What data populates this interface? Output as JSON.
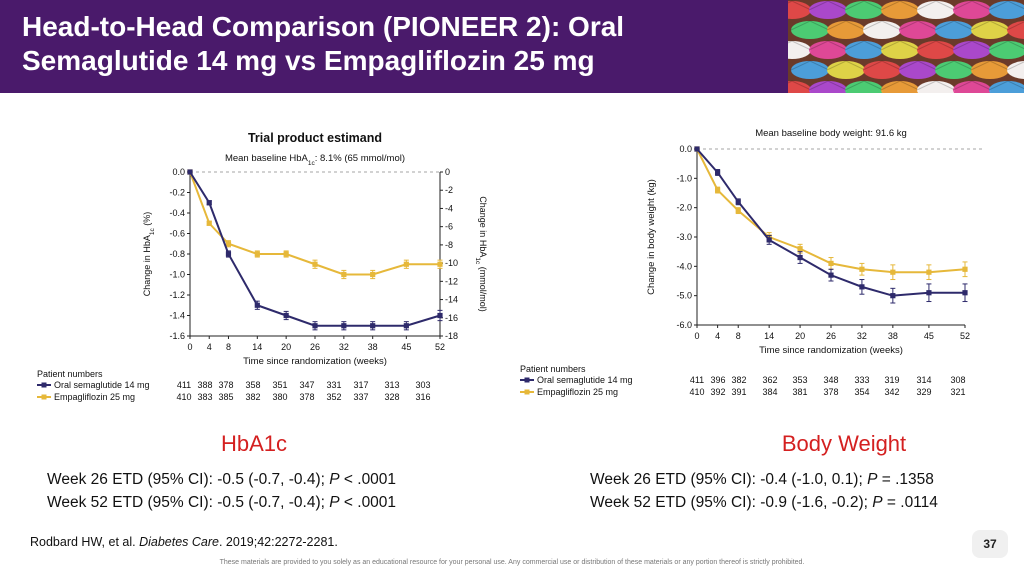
{
  "slide": {
    "title_line1": "Head-to-Head Comparison (PIONEER 2): Oral",
    "title_line2": "Semaglutide 14 mg vs Empagliflozin 25 mg",
    "citation_prefix": "Rodbard HW, et al. ",
    "citation_journal": "Diabetes Care",
    "citation_suffix": ". 2019;42:2272-2281.",
    "page_number": "37",
    "disclaimer": "These materials are provided to you solely as an educational resource for your personal use. Any commercial use or distribution of these materials or any portion thereof is strictly prohibited.",
    "colors": {
      "header": "#4a1a6b",
      "semaglutide": "#2e2a6b",
      "empagliflozin": "#e6b83a",
      "heading_red": "#d42020"
    }
  },
  "hba1c_section": {
    "heading": "HbA1c",
    "etd": [
      {
        "pre": "Week 26 ETD (95% CI): -0.5 (-0.7, -0.4); ",
        "p": "P",
        "post": " < .0001"
      },
      {
        "pre": "Week 52 ETD (95% CI): -0.5 (-0.7, -0.4); ",
        "p": "P",
        "post": " < .0001"
      }
    ]
  },
  "weight_section": {
    "heading": "Body Weight",
    "etd": [
      {
        "pre": "Week 26 ETD (95% CI): -0.4 (-1.0, 0.1); ",
        "p": "P",
        "post": " = .1358"
      },
      {
        "pre": "Week 52 ETD (95% CI): -0.9 (-1.6, -0.2); ",
        "p": "P",
        "post": " = .0114"
      }
    ]
  },
  "chart_data": [
    {
      "type": "line",
      "title": "Trial product estimand",
      "subtitle_pre": "Mean baseline HbA",
      "subtitle_sub": "1c",
      "subtitle_post": ": 8.1% (65 mmol/mol)",
      "xlabel": "Time since randomization (weeks)",
      "ylabel_pre": "Change in HbA",
      "ylabel_sub": "1c",
      "ylabel_post": " (%)",
      "y2label_pre": "Change in HbA",
      "y2label_sub": "1c",
      "y2label_post": " (mmol/mol)",
      "x": [
        0,
        4,
        8,
        14,
        20,
        26,
        32,
        38,
        45,
        52
      ],
      "x_ticks": [
        "0",
        "4",
        "8",
        "14",
        "20",
        "26",
        "32",
        "38",
        "45",
        "52"
      ],
      "xlim": [
        0,
        52
      ],
      "ylim": [
        -1.6,
        0
      ],
      "y_ticks": [
        "0.0",
        "-0.2",
        "-0.4",
        "-0.6",
        "-0.8",
        "-1.0",
        "-1.2",
        "-1.4",
        "-1.6"
      ],
      "y2lim": [
        -18,
        0
      ],
      "y2_ticks": [
        "0",
        "-2",
        "-4",
        "-6",
        "-8",
        "-10",
        "-12",
        "-14",
        "-16",
        "-18"
      ],
      "series": [
        {
          "name": "Oral semaglutide 14 mg",
          "color": "#2e2a6b",
          "marker": "square",
          "values": [
            0,
            -0.3,
            -0.8,
            -1.3,
            -1.4,
            -1.5,
            -1.5,
            -1.5,
            -1.5,
            -1.4
          ],
          "err": [
            0,
            0.02,
            0.03,
            0.04,
            0.04,
            0.04,
            0.04,
            0.04,
            0.04,
            0.05
          ]
        },
        {
          "name": "Empagliflozin 25 mg",
          "color": "#e6b83a",
          "marker": "square",
          "values": [
            0,
            -0.5,
            -0.7,
            -0.8,
            -0.8,
            -0.9,
            -1.0,
            -1.0,
            -0.9,
            -0.9
          ],
          "err": [
            0,
            0.02,
            0.03,
            0.03,
            0.03,
            0.04,
            0.04,
            0.04,
            0.04,
            0.04
          ]
        }
      ],
      "patient_numbers_label": "Patient numbers",
      "patient_numbers": [
        {
          "name": "Oral semaglutide 14 mg",
          "counts": [
            "411",
            "388",
            "378",
            "358",
            "351",
            "347",
            "331",
            "317",
            "313",
            "303"
          ]
        },
        {
          "name": "Empagliflozin 25 mg",
          "counts": [
            "410",
            "383",
            "385",
            "382",
            "380",
            "378",
            "352",
            "337",
            "328",
            "316"
          ]
        }
      ]
    },
    {
      "type": "line",
      "subtitle": "Mean baseline body weight: 91.6 kg",
      "xlabel": "Time since randomization (weeks)",
      "ylabel": "Change in body weight (kg)",
      "x": [
        0,
        4,
        8,
        14,
        20,
        26,
        32,
        38,
        45,
        52
      ],
      "x_ticks": [
        "0",
        "4",
        "8",
        "14",
        "20",
        "26",
        "32",
        "38",
        "45",
        "52"
      ],
      "xlim": [
        0,
        52
      ],
      "ylim": [
        -6,
        0
      ],
      "y_ticks": [
        "0.0",
        "-1.0",
        "-2.0",
        "-3.0",
        "-4.0",
        "-5.0",
        "-6.0"
      ],
      "series": [
        {
          "name": "Oral semaglutide 14 mg",
          "color": "#2e2a6b",
          "marker": "square",
          "values": [
            0,
            -0.8,
            -1.8,
            -3.1,
            -3.7,
            -4.3,
            -4.7,
            -5.0,
            -4.9,
            -4.9
          ],
          "err": [
            0,
            0.1,
            0.1,
            0.15,
            0.2,
            0.2,
            0.25,
            0.25,
            0.3,
            0.3
          ]
        },
        {
          "name": "Empagliflozin 25 mg",
          "color": "#e6b83a",
          "marker": "square",
          "values": [
            0,
            -1.4,
            -2.1,
            -3.0,
            -3.4,
            -3.9,
            -4.1,
            -4.2,
            -4.2,
            -4.1
          ],
          "err": [
            0,
            0.1,
            0.1,
            0.15,
            0.15,
            0.2,
            0.2,
            0.25,
            0.25,
            0.25
          ]
        }
      ],
      "patient_numbers_label": "Patient numbers",
      "patient_numbers": [
        {
          "name": "Oral semaglutide 14 mg",
          "counts": [
            "411",
            "396",
            "382",
            "362",
            "353",
            "348",
            "333",
            "319",
            "314",
            "308"
          ]
        },
        {
          "name": "Empagliflozin 25 mg",
          "counts": [
            "410",
            "392",
            "391",
            "384",
            "381",
            "378",
            "354",
            "342",
            "329",
            "321"
          ]
        }
      ]
    }
  ]
}
